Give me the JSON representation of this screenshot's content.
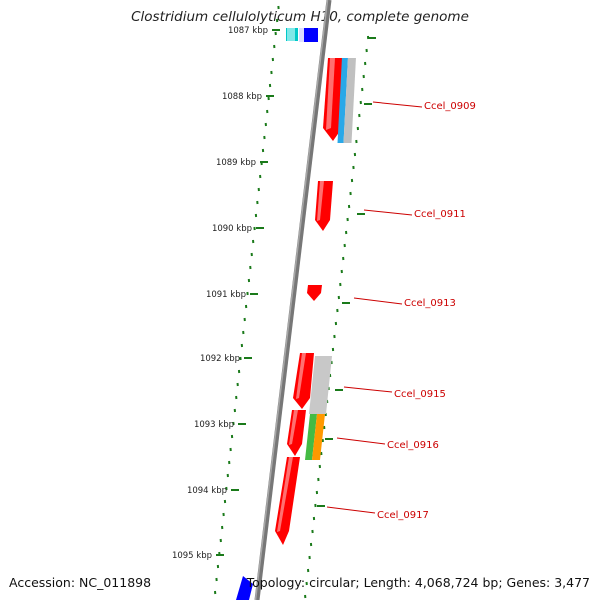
{
  "title": "Clostridium cellulolyticum H10, complete genome",
  "accession": "Accession: NC_011898",
  "summary": "Topology: circular; Length: 4,068,724 bp; Genes: 3,477",
  "colors": {
    "backbone": "#777777",
    "tick": "#1a7a1a",
    "label": "#cc0000",
    "forward_gene": "#ff0000",
    "rna": "#0000ff",
    "cds_cyan": "#00c8c8",
    "cog_blue": "#2aa8e8",
    "cog_grey": "#c0c0c0",
    "cog_green": "#44bb44",
    "cog_orange": "#ff9900"
  },
  "scale_labels": [
    "1087 kbp",
    "1088 kbp",
    "1089 kbp",
    "1090 kbp",
    "1091 kbp",
    "1092 kbp",
    "1093 kbp",
    "1094 kbp",
    "1095 kbp"
  ],
  "gene_labels": [
    "Ccel_0909",
    "Ccel_0911",
    "Ccel_0913",
    "Ccel_0915",
    "Ccel_0916",
    "Ccel_0917"
  ]
}
